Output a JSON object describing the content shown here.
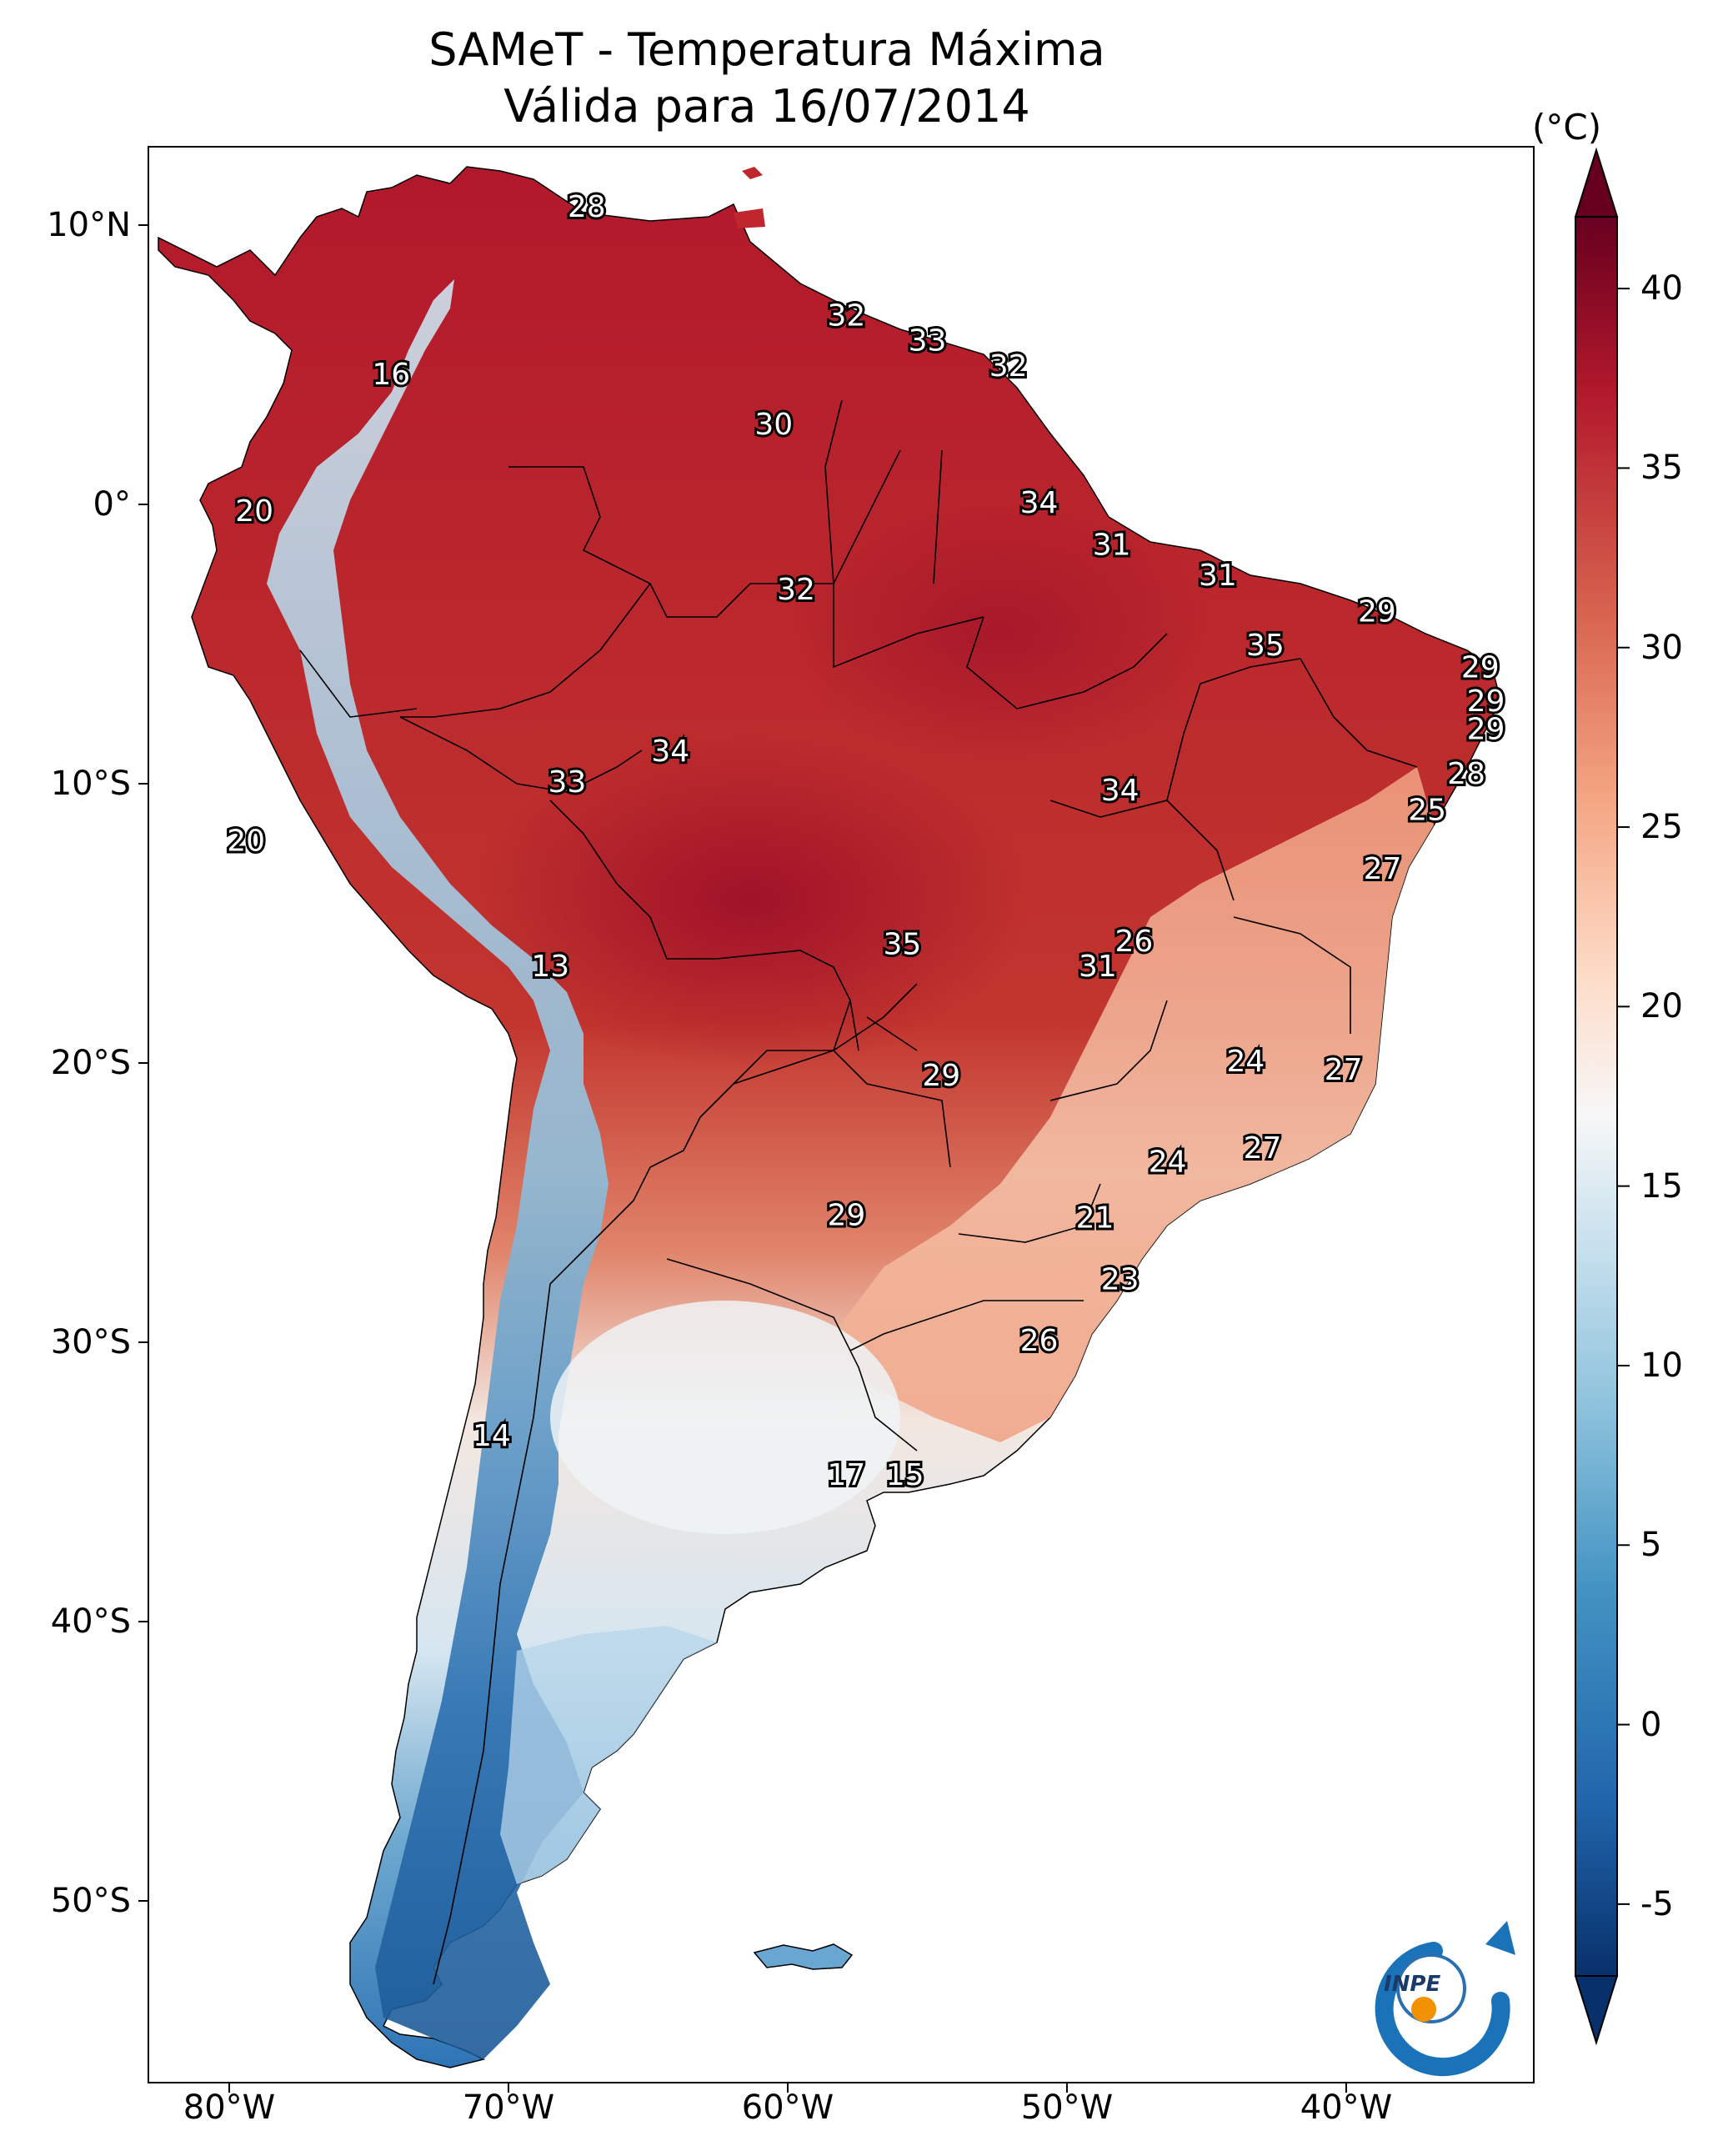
{
  "title": "SAMeT - Temperatura Máxima",
  "subtitle": "Válida para 16/07/2014",
  "colorbar": {
    "unit": "(°C)",
    "ticks": [
      "-5",
      "0",
      "5",
      "10",
      "15",
      "20",
      "25",
      "30",
      "35",
      "40"
    ],
    "range": [
      -7,
      42
    ],
    "colors": [
      "#08306b",
      "#2166ac",
      "#4393c3",
      "#92c5de",
      "#d1e5f0",
      "#f7f7f7",
      "#fddbc7",
      "#f4a582",
      "#d6604d",
      "#b2182b",
      "#67001f"
    ]
  },
  "axes": {
    "lat_labels": [
      "10°N",
      "0°",
      "10°S",
      "20°S",
      "30°S",
      "40°S",
      "50°S"
    ],
    "lon_labels": [
      "80°W",
      "70°W",
      "60°W",
      "50°W",
      "40°W"
    ]
  },
  "logo_text": "INPE",
  "temperature_labels": [
    {
      "v": "28",
      "lon": -67.2,
      "lat": 10.6
    },
    {
      "v": "32",
      "lon": -57.9,
      "lat": 6.7
    },
    {
      "v": "33",
      "lon": -55.0,
      "lat": 5.8
    },
    {
      "v": "32",
      "lon": -52.1,
      "lat": 4.9
    },
    {
      "v": "16",
      "lon": -74.2,
      "lat": 4.6
    },
    {
      "v": "30",
      "lon": -60.5,
      "lat": 2.8
    },
    {
      "v": "20",
      "lon": -79.1,
      "lat": -0.3
    },
    {
      "v": "34",
      "lon": -51.0,
      "lat": 0.0
    },
    {
      "v": "31",
      "lon": -48.4,
      "lat": -1.5
    },
    {
      "v": "31",
      "lon": -44.6,
      "lat": -2.6
    },
    {
      "v": "32",
      "lon": -59.7,
      "lat": -3.1
    },
    {
      "v": "29",
      "lon": -38.9,
      "lat": -3.9
    },
    {
      "v": "35",
      "lon": -42.9,
      "lat": -5.1
    },
    {
      "v": "29",
      "lon": -35.2,
      "lat": -5.9
    },
    {
      "v": "29",
      "lon": -35.0,
      "lat": -7.1
    },
    {
      "v": "29",
      "lon": -35.0,
      "lat": -8.1
    },
    {
      "v": "34",
      "lon": -64.2,
      "lat": -8.9
    },
    {
      "v": "33",
      "lon": -67.9,
      "lat": -10.0
    },
    {
      "v": "28",
      "lon": -35.7,
      "lat": -9.7
    },
    {
      "v": "34",
      "lon": -48.1,
      "lat": -10.3
    },
    {
      "v": "25",
      "lon": -37.1,
      "lat": -11.0
    },
    {
      "v": "20",
      "lon": -79.4,
      "lat": -12.1
    },
    {
      "v": "27",
      "lon": -38.7,
      "lat": -13.1
    },
    {
      "v": "26",
      "lon": -47.6,
      "lat": -15.7
    },
    {
      "v": "35",
      "lon": -55.9,
      "lat": -15.8
    },
    {
      "v": "13",
      "lon": -68.5,
      "lat": -16.6
    },
    {
      "v": "31",
      "lon": -48.9,
      "lat": -16.6
    },
    {
      "v": "24",
      "lon": -43.6,
      "lat": -20.0
    },
    {
      "v": "27",
      "lon": -40.1,
      "lat": -20.3
    },
    {
      "v": "29",
      "lon": -54.5,
      "lat": -20.5
    },
    {
      "v": "27",
      "lon": -43.0,
      "lat": -23.1
    },
    {
      "v": "24",
      "lon": -46.4,
      "lat": -23.6
    },
    {
      "v": "21",
      "lon": -49.0,
      "lat": -25.6
    },
    {
      "v": "29",
      "lon": -57.9,
      "lat": -25.5
    },
    {
      "v": "23",
      "lon": -48.1,
      "lat": -27.8
    },
    {
      "v": "26",
      "lon": -51.0,
      "lat": -30.0
    },
    {
      "v": "14",
      "lon": -70.6,
      "lat": -33.4
    },
    {
      "v": "17",
      "lon": -57.9,
      "lat": -34.8
    },
    {
      "v": "15",
      "lon": -55.8,
      "lat": -34.8
    }
  ]
}
